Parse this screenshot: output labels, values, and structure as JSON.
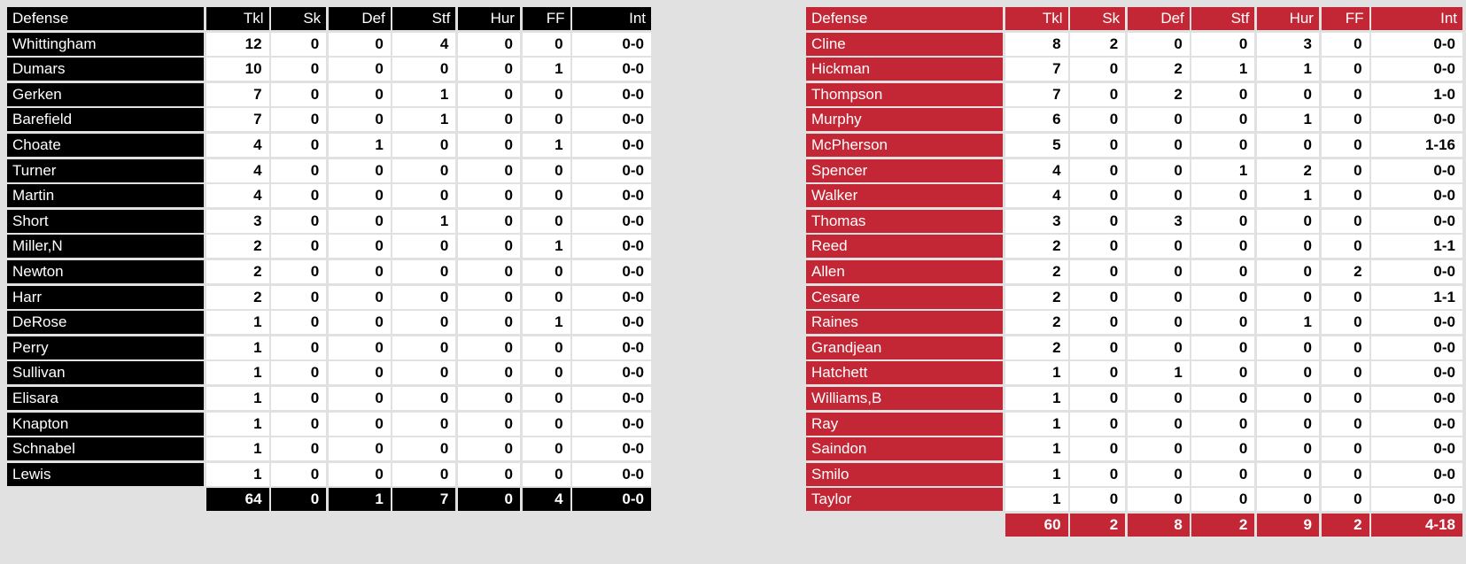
{
  "background": "#e1e1e1",
  "tables": [
    {
      "id": "left",
      "accent": "#000000",
      "accent_text": "#ffffff",
      "columns": [
        "Defense",
        "Tkl",
        "Sk",
        "Def",
        "Stf",
        "Hur",
        "FF",
        "Int"
      ],
      "players": [
        [
          "Whittingham",
          "12",
          "0",
          "0",
          "4",
          "0",
          "0",
          "0-0"
        ],
        [
          "Dumars",
          "10",
          "0",
          "0",
          "0",
          "0",
          "1",
          "0-0"
        ],
        [
          "Gerken",
          "7",
          "0",
          "0",
          "1",
          "0",
          "0",
          "0-0"
        ],
        [
          "Barefield",
          "7",
          "0",
          "0",
          "1",
          "0",
          "0",
          "0-0"
        ],
        [
          "Choate",
          "4",
          "0",
          "1",
          "0",
          "0",
          "1",
          "0-0"
        ],
        [
          "Turner",
          "4",
          "0",
          "0",
          "0",
          "0",
          "0",
          "0-0"
        ],
        [
          "Martin",
          "4",
          "0",
          "0",
          "0",
          "0",
          "0",
          "0-0"
        ],
        [
          "Short",
          "3",
          "0",
          "0",
          "1",
          "0",
          "0",
          "0-0"
        ],
        [
          "Miller,N",
          "2",
          "0",
          "0",
          "0",
          "0",
          "1",
          "0-0"
        ],
        [
          "Newton",
          "2",
          "0",
          "0",
          "0",
          "0",
          "0",
          "0-0"
        ],
        [
          "Harr",
          "2",
          "0",
          "0",
          "0",
          "0",
          "0",
          "0-0"
        ],
        [
          "DeRose",
          "1",
          "0",
          "0",
          "0",
          "0",
          "1",
          "0-0"
        ],
        [
          "Perry",
          "1",
          "0",
          "0",
          "0",
          "0",
          "0",
          "0-0"
        ],
        [
          "Sullivan",
          "1",
          "0",
          "0",
          "0",
          "0",
          "0",
          "0-0"
        ],
        [
          "Elisara",
          "1",
          "0",
          "0",
          "0",
          "0",
          "0",
          "0-0"
        ],
        [
          "Knapton",
          "1",
          "0",
          "0",
          "0",
          "0",
          "0",
          "0-0"
        ],
        [
          "Schnabel",
          "1",
          "0",
          "0",
          "0",
          "0",
          "0",
          "0-0"
        ],
        [
          "Lewis",
          "1",
          "0",
          "0",
          "0",
          "0",
          "0",
          "0-0"
        ]
      ],
      "totals": [
        "",
        "64",
        "0",
        "1",
        "7",
        "0",
        "4",
        "0-0"
      ]
    },
    {
      "id": "right",
      "accent": "#c32735",
      "accent_text": "#ffffff",
      "columns": [
        "Defense",
        "Tkl",
        "Sk",
        "Def",
        "Stf",
        "Hur",
        "FF",
        "Int"
      ],
      "players": [
        [
          "Cline",
          "8",
          "2",
          "0",
          "0",
          "3",
          "0",
          "0-0"
        ],
        [
          "Hickman",
          "7",
          "0",
          "2",
          "1",
          "1",
          "0",
          "0-0"
        ],
        [
          "Thompson",
          "7",
          "0",
          "2",
          "0",
          "0",
          "0",
          "1-0"
        ],
        [
          "Murphy",
          "6",
          "0",
          "0",
          "0",
          "1",
          "0",
          "0-0"
        ],
        [
          "McPherson",
          "5",
          "0",
          "0",
          "0",
          "0",
          "0",
          "1-16"
        ],
        [
          "Spencer",
          "4",
          "0",
          "0",
          "1",
          "2",
          "0",
          "0-0"
        ],
        [
          "Walker",
          "4",
          "0",
          "0",
          "0",
          "1",
          "0",
          "0-0"
        ],
        [
          "Thomas",
          "3",
          "0",
          "3",
          "0",
          "0",
          "0",
          "0-0"
        ],
        [
          "Reed",
          "2",
          "0",
          "0",
          "0",
          "0",
          "0",
          "1-1"
        ],
        [
          "Allen",
          "2",
          "0",
          "0",
          "0",
          "0",
          "2",
          "0-0"
        ],
        [
          "Cesare",
          "2",
          "0",
          "0",
          "0",
          "0",
          "0",
          "1-1"
        ],
        [
          "Raines",
          "2",
          "0",
          "0",
          "0",
          "1",
          "0",
          "0-0"
        ],
        [
          "Grandjean",
          "2",
          "0",
          "0",
          "0",
          "0",
          "0",
          "0-0"
        ],
        [
          "Hatchett",
          "1",
          "0",
          "1",
          "0",
          "0",
          "0",
          "0-0"
        ],
        [
          "Williams,B",
          "1",
          "0",
          "0",
          "0",
          "0",
          "0",
          "0-0"
        ],
        [
          "Ray",
          "1",
          "0",
          "0",
          "0",
          "0",
          "0",
          "0-0"
        ],
        [
          "Saindon",
          "1",
          "0",
          "0",
          "0",
          "0",
          "0",
          "0-0"
        ],
        [
          "Smilo",
          "1",
          "0",
          "0",
          "0",
          "0",
          "0",
          "0-0"
        ],
        [
          "Taylor",
          "1",
          "0",
          "0",
          "0",
          "0",
          "0",
          "0-0"
        ]
      ],
      "totals": [
        "",
        "60",
        "2",
        "8",
        "2",
        "9",
        "2",
        "4-18"
      ]
    }
  ]
}
